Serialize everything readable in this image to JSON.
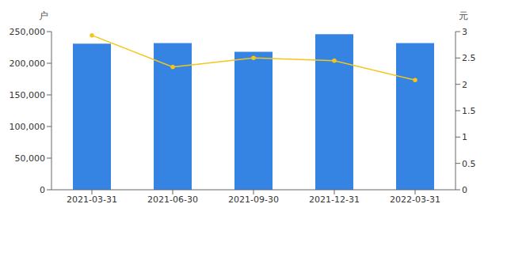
{
  "chart_data": {
    "type": "bar",
    "y_label": "户",
    "y2_label": "元",
    "categories": [
      "2021-03-31",
      "2021-06-30",
      "2021-09-30",
      "2021-12-31",
      "2022-03-31"
    ],
    "series": [
      {
        "type": "bar",
        "color": "#3584e4",
        "values": [
          231000,
          232000,
          218000,
          246000,
          232000
        ]
      },
      {
        "type": "line",
        "axis": "y2",
        "color": "#f5c518",
        "marker": "circle",
        "values": [
          2.93,
          2.33,
          2.5,
          2.45,
          2.08
        ]
      }
    ],
    "ylim": [
      0,
      250000
    ],
    "yticks": [
      0,
      {
        "value": 50000,
        "label": "50,000"
      },
      {
        "value": 100000,
        "label": "100,000"
      },
      {
        "value": 150000,
        "label": "150,000"
      },
      {
        "value": 200000,
        "label": "200,000"
      },
      {
        "value": 250000,
        "label": "250,000"
      }
    ],
    "y2lim": [
      0,
      3
    ],
    "y2ticks": [
      0,
      0.5,
      1,
      1.5,
      2,
      2.5,
      3
    ],
    "grid": false
  }
}
